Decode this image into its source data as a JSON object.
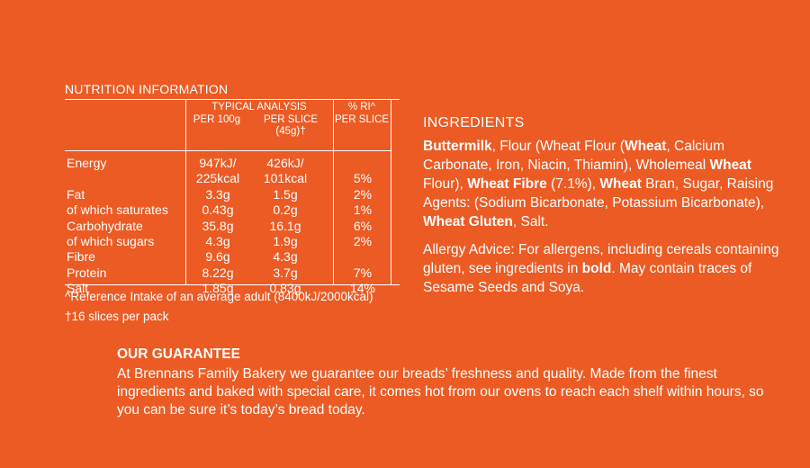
{
  "nutrition": {
    "title": "NUTRITION INFORMATION",
    "headers": {
      "typical_analysis": "TYPICAL ANALYSIS",
      "per_100g": "PER 100g",
      "per_slice": "PER SLICE (45g)†",
      "ri": "% RI^",
      "ri_per_slice": "PER SLICE"
    },
    "rows": [
      {
        "name": "Energy",
        "per100": "947kJ/",
        "slice": "426kJ/",
        "ri": ""
      },
      {
        "name": "",
        "per100": "225kcal",
        "slice": "101kcal",
        "ri": "5%"
      },
      {
        "name": "Fat",
        "per100": "3.3g",
        "slice": "1.5g",
        "ri": "2%"
      },
      {
        "name": "of which saturates",
        "per100": "0.43g",
        "slice": "0.2g",
        "ri": "1%"
      },
      {
        "name": "Carbohydrate",
        "per100": "35.8g",
        "slice": "16.1g",
        "ri": "6%"
      },
      {
        "name": "of which sugars",
        "per100": "4.3g",
        "slice": "1.9g",
        "ri": "2%"
      },
      {
        "name": "Fibre",
        "per100": "9.6g",
        "slice": "4.3g",
        "ri": ""
      },
      {
        "name": "Protein",
        "per100": "8.22g",
        "slice": "3.7g",
        "ri": "7%"
      },
      {
        "name": "Salt",
        "per100": "1.85g",
        "slice": "0.83g",
        "ri": "14%"
      }
    ],
    "footnote_ri": "^Reference Intake of an average adult (8400kJ/2000kcal)",
    "footnote_slices": "†16 slices per pack"
  },
  "ingredients": {
    "title": "INGREDIENTS",
    "parts": [
      {
        "text": "Buttermilk",
        "bold": true
      },
      {
        "text": ", Flour (Wheat Flour (",
        "bold": false
      },
      {
        "text": "Wheat",
        "bold": true
      },
      {
        "text": ", Calcium Carbonate, Iron, Niacin, Thiamin), Wholemeal ",
        "bold": false
      },
      {
        "text": "Wheat",
        "bold": true
      },
      {
        "text": " Flour), ",
        "bold": false
      },
      {
        "text": "Wheat Fibre",
        "bold": true
      },
      {
        "text": " (7.1%), ",
        "bold": false
      },
      {
        "text": "Wheat",
        "bold": true
      },
      {
        "text": " Bran, Sugar, Raising Agents: (Sodium Bicarbonate, Potassium Bicarbonate), ",
        "bold": false
      },
      {
        "text": "Wheat Gluten",
        "bold": true
      },
      {
        "text": ", Salt.",
        "bold": false
      }
    ],
    "allergy_parts": [
      {
        "text": "Allergy Advice: For allergens, including cereals containing gluten, see ingredients in ",
        "bold": false
      },
      {
        "text": "bold",
        "bold": true
      },
      {
        "text": ". May contain traces of Sesame Seeds and Soya.",
        "bold": false
      }
    ]
  },
  "guarantee": {
    "title": "OUR GUARANTEE",
    "text": "At Brennans Family Bakery we guarantee our breads’ freshness and quality. Made from the finest ingredients and baked with special care, it comes hot from our ovens to reach each shelf within hours, so you can be sure it’s today’s bread today."
  },
  "colors": {
    "background": "#ec5b24",
    "text": "#ffffff"
  }
}
